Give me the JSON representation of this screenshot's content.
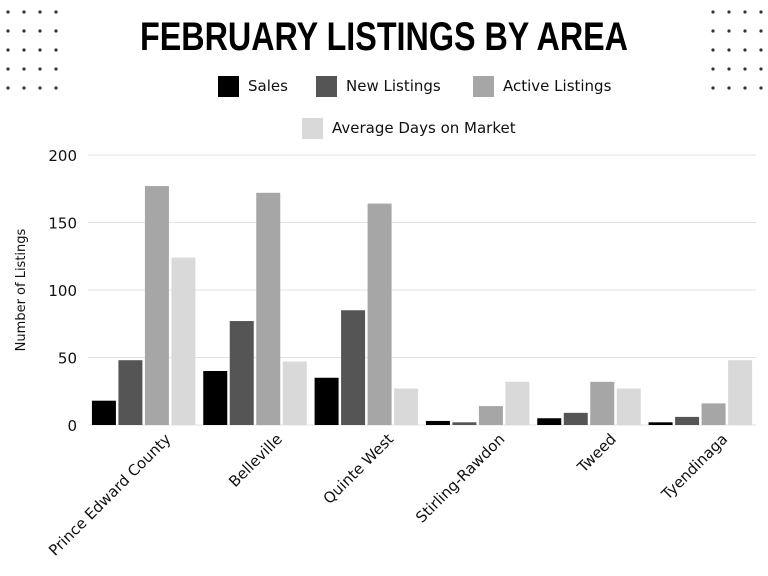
{
  "chart_data": {
    "type": "bar",
    "title": "FEBRUARY LISTINGS BY AREA",
    "ylabel": "Number of Listings",
    "xlabel": "",
    "ylim": [
      0,
      200
    ],
    "yticks": [
      0,
      50,
      100,
      150,
      200
    ],
    "grid": true,
    "legend_position": "top",
    "categories": [
      "Prince Edward County",
      "Belleville",
      "Quinte West",
      "Stirling-Rawdon",
      "Tweed",
      "Tyendinaga"
    ],
    "series": [
      {
        "name": "Sales",
        "color": "#000000",
        "values": [
          18,
          40,
          35,
          3,
          5,
          2
        ]
      },
      {
        "name": "New Listings",
        "color": "#555555",
        "values": [
          48,
          77,
          85,
          2,
          9,
          6
        ]
      },
      {
        "name": "Active Listings",
        "color": "#a6a6a6",
        "values": [
          177,
          172,
          164,
          14,
          32,
          16
        ]
      },
      {
        "name": "Average Days on Market",
        "color": "#d9d9d9",
        "values": [
          124,
          47,
          27,
          32,
          27,
          48
        ]
      }
    ]
  }
}
